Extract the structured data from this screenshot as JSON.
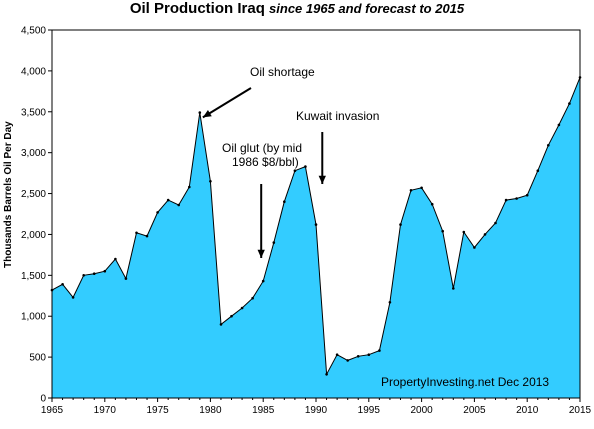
{
  "chart_data": {
    "type": "area",
    "title": "Oil Production Iraq",
    "subtitle": "since 1965 and forecast to 2015",
    "xlabel": "",
    "ylabel": "Thousands Barrels Oil Per Day",
    "xlim": [
      1965,
      2015
    ],
    "ylim": [
      0,
      4500
    ],
    "x_ticks": [
      "1965",
      "1970",
      "1975",
      "1980",
      "1985",
      "1990",
      "1995",
      "2000",
      "2005",
      "2010",
      "2015"
    ],
    "y_ticks": [
      "0",
      "500",
      "1,000",
      "1,500",
      "2,000",
      "2,500",
      "3,000",
      "3,500",
      "4,000",
      "4,500"
    ],
    "grid": false,
    "fill_color": "#33ccff",
    "series": [
      {
        "x": [
          1965,
          1966,
          1967,
          1968,
          1969,
          1970,
          1971,
          1972,
          1973,
          1974,
          1975,
          1976,
          1977,
          1978,
          1979,
          1980,
          1981,
          1982,
          1983,
          1984,
          1985,
          1986,
          1987,
          1988,
          1989,
          1990,
          1991,
          1992,
          1993,
          1994,
          1995,
          1996,
          1997,
          1998,
          1999,
          2000,
          2001,
          2002,
          2003,
          2004,
          2005,
          2006,
          2007,
          2008,
          2009,
          2010,
          2011,
          2012,
          2013,
          2014,
          2015
        ],
        "values": [
          1320,
          1390,
          1230,
          1500,
          1520,
          1550,
          1700,
          1460,
          2020,
          1980,
          2270,
          2420,
          2360,
          2580,
          3490,
          2650,
          900,
          1000,
          1100,
          1220,
          1430,
          1900,
          2400,
          2780,
          2830,
          2120,
          290,
          530,
          460,
          510,
          530,
          580,
          1170,
          2120,
          2540,
          2570,
          2370,
          2040,
          1340,
          2030,
          1840,
          2000,
          2140,
          2420,
          2440,
          2480,
          2780,
          3090,
          3340,
          3600,
          3920
        ]
      }
    ],
    "annotations": [
      {
        "text": "Oil shortage",
        "x": 1979,
        "y": 3490
      },
      {
        "text": "Oil glut (by mid",
        "text2": "1986 $8/bbl)",
        "x": 1985,
        "y": 1720
      },
      {
        "text": "Kuwait invasion",
        "x": 1990.5,
        "y": 2560
      }
    ],
    "watermark": "PropertyInvesting.net  Dec 2013"
  }
}
